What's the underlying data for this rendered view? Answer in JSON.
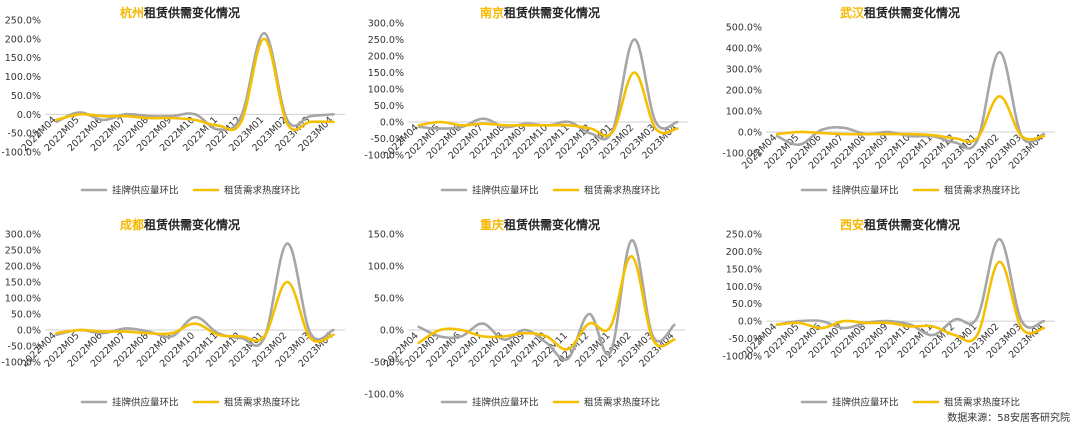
{
  "title_suffix": "租赁供需变化情况",
  "source": "数据来源：58安居客研究院",
  "colors": {
    "supply": "#A6A6A6",
    "demand": "#F5C000"
  },
  "legend": {
    "supply": "挂牌供应量环比",
    "demand": "租赁需求热度环比"
  },
  "charts": [
    {
      "city": "杭州",
      "chart_data": {
        "type": "line",
        "categories": [
          "2022M04",
          "2022M05",
          "2022M06",
          "2022M07",
          "2022M08",
          "2022M09",
          "2022M10",
          "2022M11",
          "2022M12",
          "2023M01",
          "2023M02",
          "2023M03",
          "2023M04"
        ],
        "ylim": [
          -100,
          250
        ],
        "yticks": [
          "250.0%",
          "200.0%",
          "150.0%",
          "100.0%",
          "50.0%",
          "0.0%",
          "-50.0%",
          "-100.0%"
        ],
        "ytick_values": [
          250,
          200,
          150,
          100,
          50,
          0,
          -50,
          -100
        ],
        "series": [
          {
            "name": "挂牌供应量环比",
            "values": [
              -20,
              5,
              -15,
              0,
              -5,
              -5,
              0,
              -40,
              -5,
              215,
              -15,
              -5,
              0
            ]
          },
          {
            "name": "租赁需求热度环比",
            "values": [
              -15,
              0,
              -5,
              -5,
              -10,
              -10,
              -15,
              -30,
              -20,
              200,
              -25,
              -20,
              -20
            ]
          }
        ]
      }
    },
    {
      "city": "南京",
      "chart_data": {
        "type": "line",
        "categories": [
          "2022M04",
          "2022M05",
          "2022M06",
          "2022M07",
          "2022M08",
          "2022M09",
          "2022M10",
          "2022M11",
          "2022M12",
          "2023M01",
          "2023M02",
          "2023M03",
          "2023M04"
        ],
        "ylim": [
          -100,
          300
        ],
        "yticks": [
          "300.0%",
          "250.0%",
          "200.0%",
          "150.0%",
          "100.0%",
          "50.0%",
          "0.0%",
          "-50.0%",
          "-100.0%"
        ],
        "ytick_values": [
          300,
          250,
          200,
          150,
          100,
          50,
          0,
          -50,
          -100
        ],
        "series": [
          {
            "name": "挂牌供应量环比",
            "values": [
              -15,
              -20,
              -15,
              10,
              -15,
              -5,
              -10,
              0,
              -35,
              -25,
              250,
              0,
              0
            ]
          },
          {
            "name": "租赁需求热度环比",
            "values": [
              -10,
              0,
              -10,
              -5,
              -10,
              -10,
              -10,
              -10,
              -20,
              -30,
              150,
              -20,
              -20
            ]
          }
        ]
      }
    },
    {
      "city": "武汉",
      "chart_data": {
        "type": "line",
        "categories": [
          "2022M04",
          "2022M05",
          "2022M06",
          "2022M07",
          "2022M08",
          "2022M09",
          "2022M10",
          "2022M11",
          "2022M12",
          "2023M01",
          "2023M02",
          "2023M03",
          "2023M04"
        ],
        "ylim": [
          -100,
          500
        ],
        "yticks": [
          "500.0%",
          "400.0%",
          "300.0%",
          "200.0%",
          "100.0%",
          "0.0%",
          "-100.0%"
        ],
        "ytick_values": [
          500,
          400,
          300,
          200,
          100,
          0,
          -100
        ],
        "series": [
          {
            "name": "挂牌供应量环比",
            "values": [
              -20,
              -60,
              10,
              20,
              -10,
              0,
              -20,
              -20,
              -50,
              -40,
              380,
              -20,
              -10
            ]
          },
          {
            "name": "租赁需求热度环比",
            "values": [
              -10,
              0,
              -5,
              -10,
              -10,
              -10,
              -10,
              -15,
              -30,
              -30,
              170,
              -20,
              -20
            ]
          }
        ]
      }
    },
    {
      "city": "成都",
      "chart_data": {
        "type": "line",
        "categories": [
          "2022M04",
          "2022M05",
          "2022M06",
          "2022M07",
          "2022M08",
          "2022M09",
          "2022M10",
          "2022M11",
          "2022M12",
          "2023M01",
          "2023M02",
          "2023M03",
          "2023M04"
        ],
        "ylim": [
          -100,
          300
        ],
        "yticks": [
          "300.0%",
          "250.0%",
          "200.0%",
          "150.0%",
          "100.0%",
          "50.0%",
          "0.0%",
          "-50.0%",
          "-100.0%"
        ],
        "ytick_values": [
          300,
          250,
          200,
          150,
          100,
          50,
          0,
          -50,
          -100
        ],
        "series": [
          {
            "name": "挂牌供应量环比",
            "values": [
              -15,
              0,
              -10,
              5,
              -5,
              -20,
              40,
              -10,
              -25,
              -25,
              270,
              -10,
              0
            ]
          },
          {
            "name": "租赁需求热度环比",
            "values": [
              -10,
              0,
              -5,
              -5,
              -10,
              -10,
              20,
              -15,
              -20,
              -20,
              150,
              -25,
              -15
            ]
          }
        ]
      }
    },
    {
      "city": "重庆",
      "chart_data": {
        "type": "line",
        "categories": [
          "2022M04",
          "2022M05",
          "2022M06",
          "2022M07",
          "2022M08",
          "2022M09",
          "2022M10",
          "2022M11",
          "2022M12",
          "2023M01",
          "2023M02",
          "2023M03",
          "2023M04"
        ],
        "ylim": [
          -100,
          150
        ],
        "yticks": [
          "150.0%",
          "100.0%",
          "50.0%",
          "0.0%",
          "-50.0%",
          "-100.0%"
        ],
        "ytick_values": [
          150,
          100,
          50,
          0,
          -50,
          -100
        ],
        "series": [
          {
            "name": "挂牌供应量环比",
            "values": [
              5,
              -10,
              -10,
              10,
              -15,
              0,
              -20,
              -45,
              25,
              -35,
              140,
              -10,
              8
            ]
          },
          {
            "name": "租赁需求热度环比",
            "values": [
              -20,
              0,
              0,
              -10,
              -10,
              -5,
              -10,
              -30,
              10,
              5,
              115,
              -15,
              -15
            ]
          }
        ]
      }
    },
    {
      "city": "西安",
      "chart_data": {
        "type": "line",
        "categories": [
          "2022M04",
          "2022M05",
          "2022M06",
          "2022M07",
          "2022M08",
          "2022M09",
          "2022M10",
          "2022M11",
          "2022M12",
          "2023M01",
          "2023M02",
          "2023M03",
          "2023M04"
        ],
        "ylim": [
          -100,
          250
        ],
        "yticks": [
          "250.0%",
          "200.0%",
          "150.0%",
          "100.0%",
          "50.0%",
          "0.0%",
          "-50.0%",
          "-100.0%"
        ],
        "ytick_values": [
          250,
          200,
          150,
          100,
          50,
          0,
          -50,
          -100
        ],
        "series": [
          {
            "name": "挂牌供应量环比",
            "values": [
              -10,
              0,
              0,
              -20,
              -5,
              0,
              -10,
              -40,
              5,
              10,
              235,
              0,
              0
            ]
          },
          {
            "name": "租赁需求热度环比",
            "values": [
              -10,
              -5,
              -20,
              0,
              -5,
              -5,
              -15,
              -15,
              -40,
              -40,
              170,
              -20,
              -20
            ]
          }
        ]
      }
    }
  ]
}
